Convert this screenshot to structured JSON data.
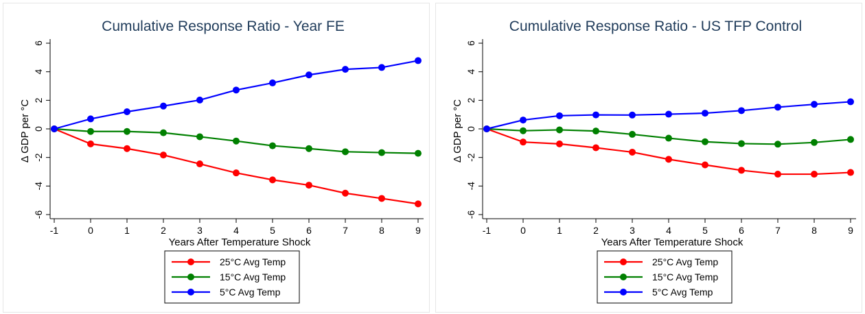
{
  "chart_data": [
    {
      "type": "line",
      "title": "Cumulative Response Ratio - Year FE",
      "xlabel": "Years After Temperature Shock",
      "ylabel": "Δ GDP per °C",
      "x": [
        -1,
        0,
        1,
        2,
        3,
        4,
        5,
        6,
        7,
        8,
        9
      ],
      "xlim": [
        -1,
        9
      ],
      "ylim": [
        -6,
        6
      ],
      "yticks": [
        -6,
        -4,
        -2,
        0,
        2,
        4,
        6
      ],
      "grid": false,
      "legend_position": "bottom",
      "series": [
        {
          "name": "25°C Avg Temp",
          "color": "#ff0000",
          "values": [
            0,
            -1.05,
            -1.38,
            -1.83,
            -2.45,
            -3.08,
            -3.57,
            -3.94,
            -4.5,
            -4.87,
            -5.25
          ]
        },
        {
          "name": "15°C Avg Temp",
          "color": "#008000",
          "values": [
            0,
            -0.18,
            -0.18,
            -0.27,
            -0.55,
            -0.85,
            -1.18,
            -1.38,
            -1.6,
            -1.66,
            -1.71
          ]
        },
        {
          "name": "5°C Avg Temp",
          "color": "#0000ff",
          "values": [
            0,
            0.7,
            1.2,
            1.6,
            2.02,
            2.72,
            3.22,
            3.78,
            4.17,
            4.3,
            4.78
          ]
        }
      ]
    },
    {
      "type": "line",
      "title": "Cumulative Response Ratio - US TFP Control",
      "xlabel": "Years After Temperature Shock",
      "ylabel": "Δ GDP per °C",
      "x": [
        -1,
        0,
        1,
        2,
        3,
        4,
        5,
        6,
        7,
        8,
        9
      ],
      "xlim": [
        -1,
        9
      ],
      "ylim": [
        -6,
        6
      ],
      "yticks": [
        -6,
        -4,
        -2,
        0,
        2,
        4,
        6
      ],
      "grid": false,
      "legend_position": "bottom",
      "series": [
        {
          "name": "25°C Avg Temp",
          "color": "#ff0000",
          "values": [
            0,
            -0.92,
            -1.05,
            -1.32,
            -1.63,
            -2.13,
            -2.52,
            -2.9,
            -3.17,
            -3.17,
            -3.05
          ]
        },
        {
          "name": "15°C Avg Temp",
          "color": "#008000",
          "values": [
            0,
            -0.13,
            -0.07,
            -0.15,
            -0.38,
            -0.65,
            -0.9,
            -1.03,
            -1.07,
            -0.95,
            -0.74
          ]
        },
        {
          "name": "5°C Avg Temp",
          "color": "#0000ff",
          "values": [
            0,
            0.62,
            0.92,
            0.98,
            0.97,
            1.03,
            1.1,
            1.28,
            1.52,
            1.72,
            1.9
          ]
        }
      ]
    }
  ]
}
